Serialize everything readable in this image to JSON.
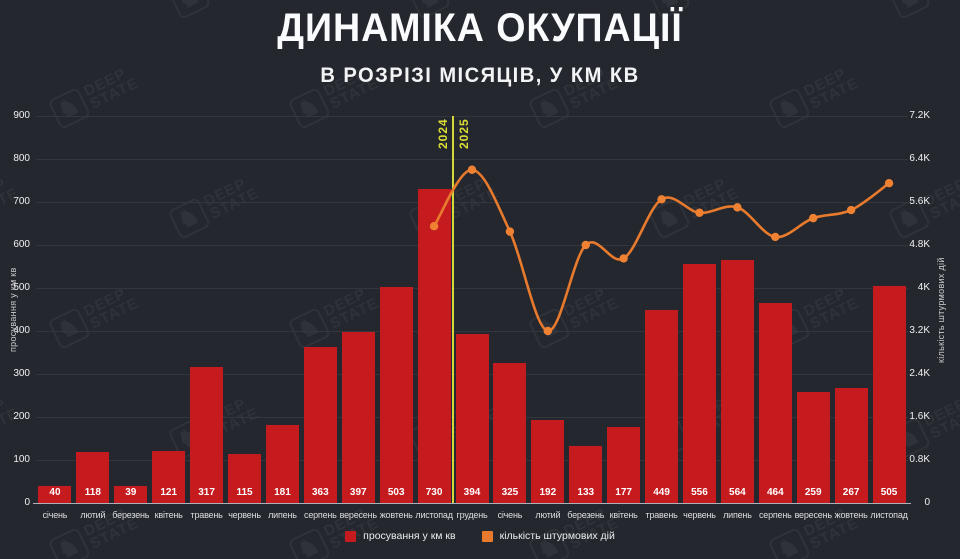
{
  "title": "ДИНАМІКА ОКУПАЦІЇ",
  "subtitle": "В РОЗРІЗІ МІСЯЦІВ, У КМ КВ",
  "watermark": "DEEP STATE",
  "colors": {
    "background": "#24272e",
    "bar": "#c51b1f",
    "line": "#e87a2d",
    "divider": "#d6d73b",
    "grid": "#32363d",
    "axis_line": "#aeb2b8"
  },
  "chart_data": {
    "type": "bar",
    "categories": [
      "січень",
      "лютий",
      "березень",
      "квітень",
      "травень",
      "червень",
      "липень",
      "серпень",
      "вересень",
      "жовтень",
      "листопад",
      "грудень",
      "січень",
      "лютий",
      "березень",
      "квітень",
      "травень",
      "червень",
      "липень",
      "серпень",
      "вересень",
      "жовтень",
      "листопад"
    ],
    "series": [
      {
        "name": "просування у км кв",
        "type": "bar",
        "axis": "left",
        "color": "#c51b1f",
        "values": [
          40,
          118,
          39,
          121,
          317,
          115,
          181,
          363,
          397,
          503,
          730,
          394,
          325,
          192,
          133,
          177,
          449,
          556,
          564,
          464,
          259,
          267,
          505
        ]
      },
      {
        "name": "кількість штурмових дій",
        "type": "line",
        "axis": "right",
        "color": "#e87a2d",
        "values": [
          null,
          null,
          null,
          null,
          null,
          null,
          null,
          null,
          null,
          null,
          5150,
          6200,
          5050,
          3200,
          4800,
          4550,
          5650,
          5400,
          5500,
          4950,
          5300,
          5450,
          5950
        ]
      }
    ],
    "left_axis": {
      "label": "просування у км кв",
      "max": 900,
      "step": 100,
      "ticks": [
        "0",
        "100",
        "200",
        "300",
        "400",
        "500",
        "600",
        "700",
        "800",
        "900"
      ]
    },
    "right_axis": {
      "label": "кількість штурмових дій",
      "max": 7200,
      "step": 800,
      "ticks": [
        "0",
        "0.8K",
        "1.6K",
        "2.4K",
        "3.2K",
        "4K",
        "4.8K",
        "5.6K",
        "6.4K",
        "7.2K"
      ]
    },
    "divider": {
      "after_index": 10,
      "left_label": "2024",
      "right_label": "2025",
      "color": "#d6d73b"
    },
    "legend_position": "bottom",
    "grid": true
  }
}
